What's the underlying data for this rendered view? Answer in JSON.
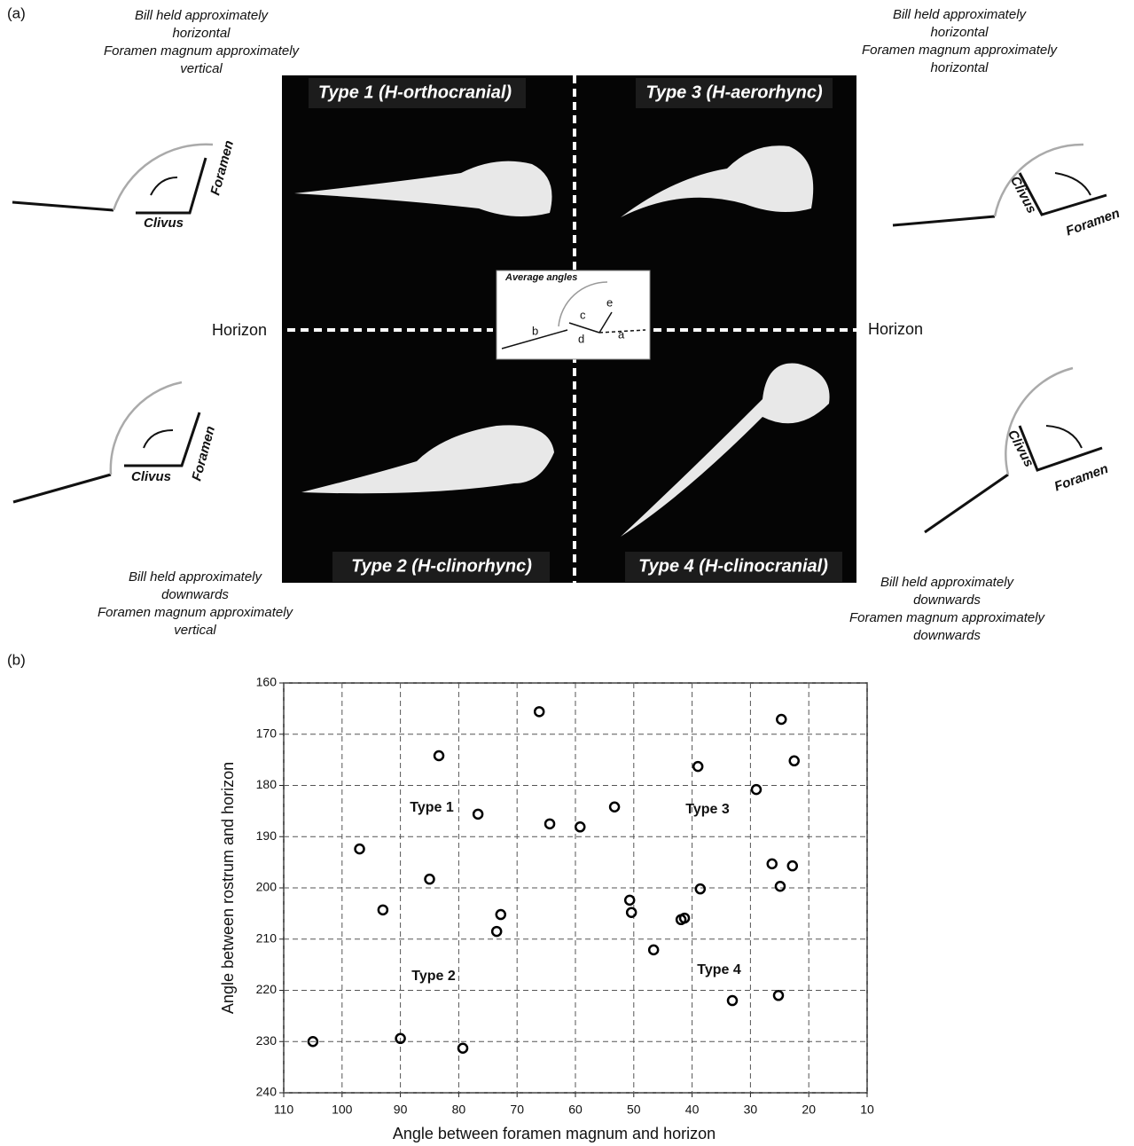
{
  "panel_a": {
    "label": "(a)",
    "notes": [
      [
        "Bill held approximately",
        "horizontal",
        "Foramen magnum approximately",
        "vertical"
      ],
      [
        "Bill held approximately",
        "horizontal",
        "Foramen magnum approximately",
        "horizontal"
      ],
      [
        "Bill held approximately",
        "downwards",
        "Foramen magnum approximately",
        "vertical"
      ],
      [
        "Bill held approximately",
        "downwards",
        "Foramen magnum approximately",
        "downwards"
      ]
    ],
    "types": [
      "Type 1 (H-orthocranial)",
      "Type 3 (H-aerorhync)",
      "Type 2 (H-clinorhync)",
      "Type 4 (H-clinocranial)"
    ],
    "horizon": [
      "Horizon",
      "Horizon"
    ],
    "diagrams": [
      {
        "clivus": "Clivus",
        "foramen": "Foramen"
      },
      {
        "clivus": "Clivus",
        "foramen": "Foramen"
      },
      {
        "clivus": "Clivus",
        "foramen": "Foramen"
      },
      {
        "clivus": "Clivus",
        "foramen": "Foramen"
      }
    ],
    "inset": {
      "title": "Average angles",
      "letters": [
        "b",
        "c",
        "d",
        "e",
        "a"
      ]
    }
  },
  "panel_b_label": "(b)",
  "chart_data": {
    "type": "scatter",
    "x_label": "Angle between foramen magnum and horizon",
    "y_label": "Angle between rostrum and horizon",
    "x": [
      105,
      97,
      93,
      85,
      83.4,
      90,
      79.3,
      76.7,
      72.8,
      73.5,
      66.2,
      64.4,
      59.2,
      53.3,
      50.7,
      50.4,
      46.6,
      41.9,
      41.3,
      39,
      38.6,
      33.1,
      29,
      26.3,
      24.7,
      22.5,
      22.8,
      24.9,
      25.2
    ],
    "values": [
      230,
      192.4,
      204.3,
      198.3,
      174.2,
      229.4,
      231.3,
      185.6,
      205.2,
      208.5,
      165.6,
      187.5,
      188.1,
      184.2,
      202.4,
      204.8,
      212.1,
      206.2,
      205.9,
      176.3,
      200.2,
      222,
      180.8,
      195.3,
      167.1,
      175.2,
      195.7,
      199.7,
      221
    ],
    "xlim": [
      110,
      10
    ],
    "ylim": [
      240,
      160
    ],
    "xticks": [
      110,
      100,
      90,
      80,
      70,
      60,
      50,
      40,
      30,
      20,
      10
    ],
    "yticks": [
      160,
      170,
      180,
      190,
      200,
      210,
      220,
      230,
      240
    ],
    "grid": true,
    "color": "#000000",
    "annotations": [
      "Type 1",
      "Type 2",
      "Type 3",
      "Type 4"
    ]
  }
}
